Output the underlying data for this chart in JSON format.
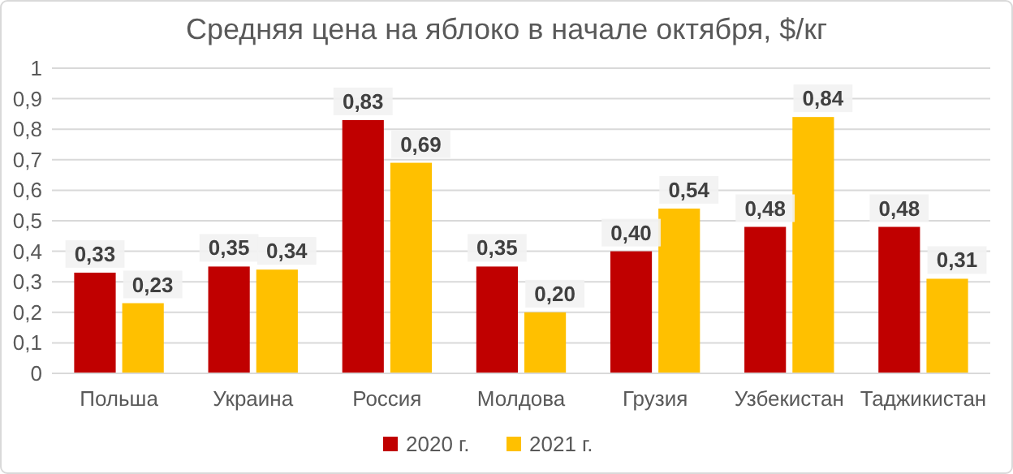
{
  "chart_data": {
    "type": "bar",
    "title": "Средняя цена на яблоко в начале октября, $/кг",
    "categories": [
      "Польша",
      "Украина",
      "Россия",
      "Молдова",
      "Грузия",
      "Узбекистан",
      "Таджикистан"
    ],
    "series": [
      {
        "name": "2020 г.",
        "color": "#c00000",
        "values": [
          0.33,
          0.35,
          0.83,
          0.35,
          0.4,
          0.48,
          0.48
        ],
        "value_labels": [
          "0,33",
          "0,35",
          "0,83",
          "0,35",
          "0,40",
          "0,48",
          "0,48"
        ]
      },
      {
        "name": "2021 г.",
        "color": "#ffc000",
        "values": [
          0.23,
          0.34,
          0.69,
          0.2,
          0.54,
          0.84,
          0.31
        ],
        "value_labels": [
          "0,23",
          "0,34",
          "0,69",
          "0,20",
          "0,54",
          "0,84",
          "0,31"
        ]
      }
    ],
    "ylim": [
      0,
      1
    ],
    "yticks": [
      0,
      {
        "value": 0.1,
        "label": "0,1"
      },
      {
        "value": 0.2,
        "label": "0,2"
      },
      {
        "value": 0.3,
        "label": "0,3"
      },
      {
        "value": 0.4,
        "label": "0,4"
      },
      {
        "value": 0.5,
        "label": "0,5"
      },
      {
        "value": 0.6,
        "label": "0,6"
      },
      {
        "value": 0.7,
        "label": "0,7"
      },
      {
        "value": 0.8,
        "label": "0,8"
      },
      {
        "value": 0.9,
        "label": "0,9"
      },
      1
    ],
    "grid": "y",
    "legend": "bottom"
  }
}
